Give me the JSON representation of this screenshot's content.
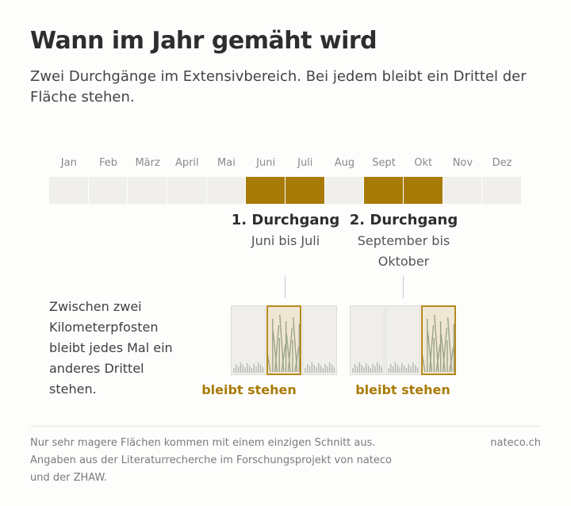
{
  "header": {
    "title": "Wann im Jahr gemäht wird",
    "subtitle": "Zwei Durchgänge im Extensivbereich. Bei jedem bleibt ein Drittel der Fläche stehen."
  },
  "calendar": {
    "months": [
      "Jan",
      "Feb",
      "März",
      "April",
      "Mai",
      "Juni",
      "Juli",
      "Aug",
      "Sept",
      "Okt",
      "Nov",
      "Dez"
    ],
    "mowing_months": [
      6,
      7,
      9,
      10
    ],
    "accent_color": "#a87b07",
    "inactive_color": "#f0efec"
  },
  "passes": [
    {
      "title": "1. Durchgang",
      "range": "Juni bis Juli",
      "tall_third": 1
    },
    {
      "title": "2. Durchgang",
      "range": "September bis Oktober",
      "tall_third": 2
    }
  ],
  "explanation": "Zwischen zwei Kilometerpfosten bleibt jedes Mal ein anderes Drittel stehen.",
  "kept_label": "bleibt stehen",
  "footer": {
    "note": "Nur sehr magere Flächen kommen mit einem einzigen Schnitt aus. Angaben aus der Literaturrecherche im Forschungsprojekt von nateco und der ZHAW.",
    "source": "nateco.ch"
  }
}
